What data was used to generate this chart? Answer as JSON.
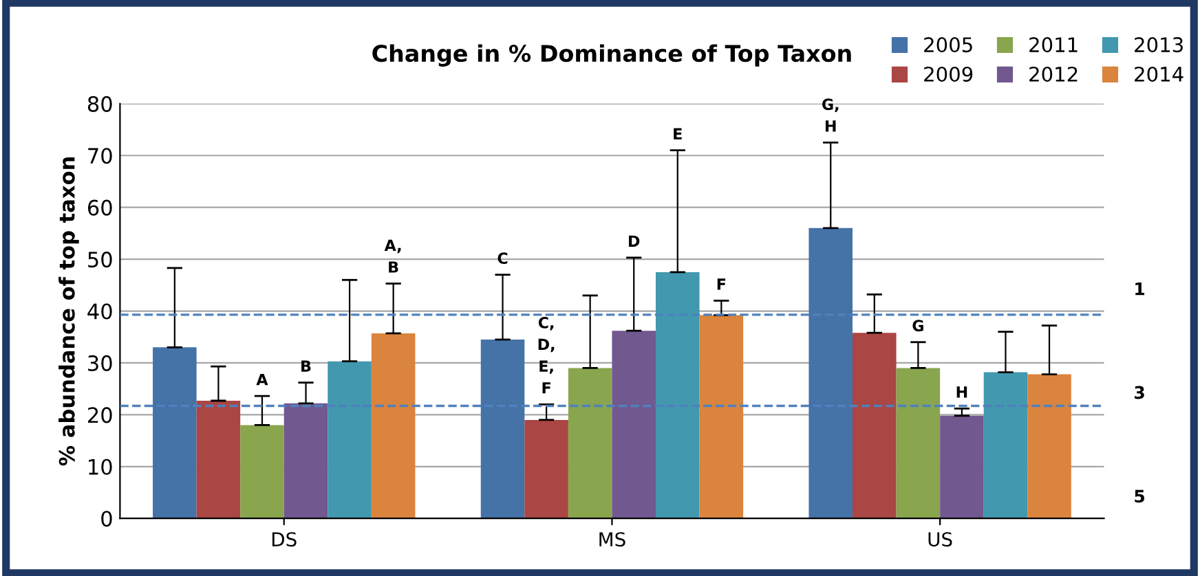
{
  "chart_data": {
    "type": "bar",
    "title": "Change in % Dominance of Top Taxon",
    "ylabel": "% abundance of top taxon",
    "categories": [
      "DS",
      "MS",
      "US"
    ],
    "series": [
      {
        "name": "2005",
        "color": "#4572a7",
        "values": [
          33,
          34.5,
          56
        ],
        "errors": [
          [
            33,
            48.3
          ],
          [
            34.5,
            47
          ],
          [
            56,
            72.5
          ]
        ]
      },
      {
        "name": "2009",
        "color": "#aa4643",
        "values": [
          22.7,
          19,
          35.8
        ],
        "errors": [
          [
            22.7,
            29.3
          ],
          [
            19,
            22
          ],
          [
            35.8,
            43.2
          ]
        ]
      },
      {
        "name": "2011",
        "color": "#89a54e",
        "values": [
          18,
          29,
          29
        ],
        "errors": [
          [
            18,
            23.6
          ],
          [
            29,
            43
          ],
          [
            29,
            34
          ]
        ]
      },
      {
        "name": "2012",
        "color": "#71588f",
        "values": [
          22.2,
          36.2,
          19.8
        ],
        "errors": [
          [
            22.2,
            26.2
          ],
          [
            36.2,
            50.3
          ],
          [
            19.8,
            21.2
          ]
        ]
      },
      {
        "name": "2013",
        "color": "#4198af",
        "values": [
          30.3,
          47.5,
          28.2
        ],
        "errors": [
          [
            30.3,
            46
          ],
          [
            47.5,
            71
          ],
          [
            28.2,
            36
          ]
        ]
      },
      {
        "name": "2014",
        "color": "#db843d",
        "values": [
          35.7,
          39.2,
          27.8
        ],
        "errors": [
          [
            35.7,
            45.3
          ],
          [
            39.2,
            42
          ],
          [
            27.8,
            37.2
          ]
        ]
      }
    ],
    "ylim": [
      0,
      80
    ],
    "yticks": [
      0,
      10,
      20,
      30,
      40,
      50,
      60,
      70,
      80
    ],
    "grid": "y",
    "legend": "top right",
    "ref_lines": [
      {
        "axis": "y",
        "value": 39.3,
        "color": "#4f81bd",
        "line_style": "dashed"
      },
      {
        "axis": "y",
        "value": 21.7,
        "color": "#4f81bd",
        "line_style": "dashed"
      }
    ],
    "annotations": [
      "A",
      "B",
      "A,\nB",
      "C",
      "C,\nD,\nE,\nF",
      "D",
      "E",
      "F",
      "G,\nH",
      "G",
      "H",
      "1",
      "3",
      "5"
    ]
  }
}
